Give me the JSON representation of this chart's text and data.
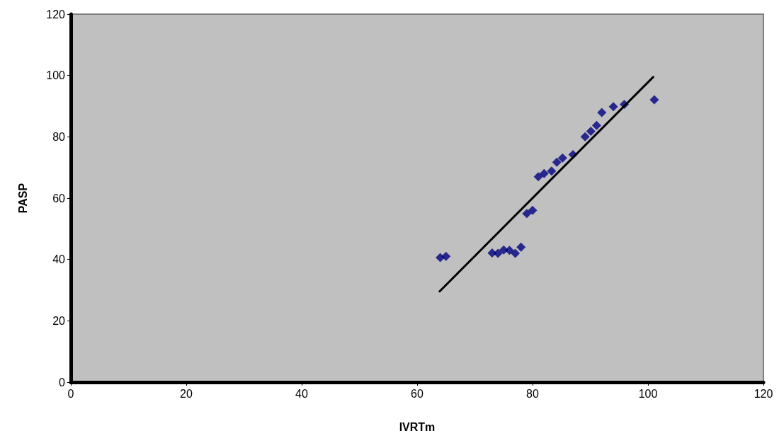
{
  "chart_data": {
    "type": "scatter",
    "xlabel": "IVRTm",
    "ylabel": "PASP",
    "xlim": [
      0,
      120
    ],
    "xticks": [
      0,
      20,
      40,
      60,
      80,
      100,
      120
    ],
    "ylim": [
      0,
      120
    ],
    "yticks": [
      0,
      20,
      40,
      60,
      80,
      100,
      120
    ],
    "grid": false,
    "marker": "diamond",
    "series": [
      {
        "color": "#000080",
        "x": [
          64,
          65,
          73,
          74,
          75,
          76,
          77,
          78,
          79,
          80,
          81,
          82,
          83.3,
          84.2,
          85.2,
          87,
          89.1,
          90.1,
          91.1,
          92,
          94,
          95.9,
          101.1
        ],
        "values": [
          40.6,
          41,
          42.1,
          42,
          43.1,
          43,
          42,
          44,
          55,
          56,
          67,
          68,
          68.8,
          71.7,
          73.1,
          74.2,
          80,
          81.8,
          83.7,
          87.9,
          89.8,
          90.6,
          92.1
        ]
      },
      {
        "type": "line",
        "color": "#000000",
        "marker": "none",
        "line_style": "solid",
        "x": [
          63.9,
          100.9
        ],
        "values": [
          29.6,
          99.5
        ]
      }
    ]
  }
}
